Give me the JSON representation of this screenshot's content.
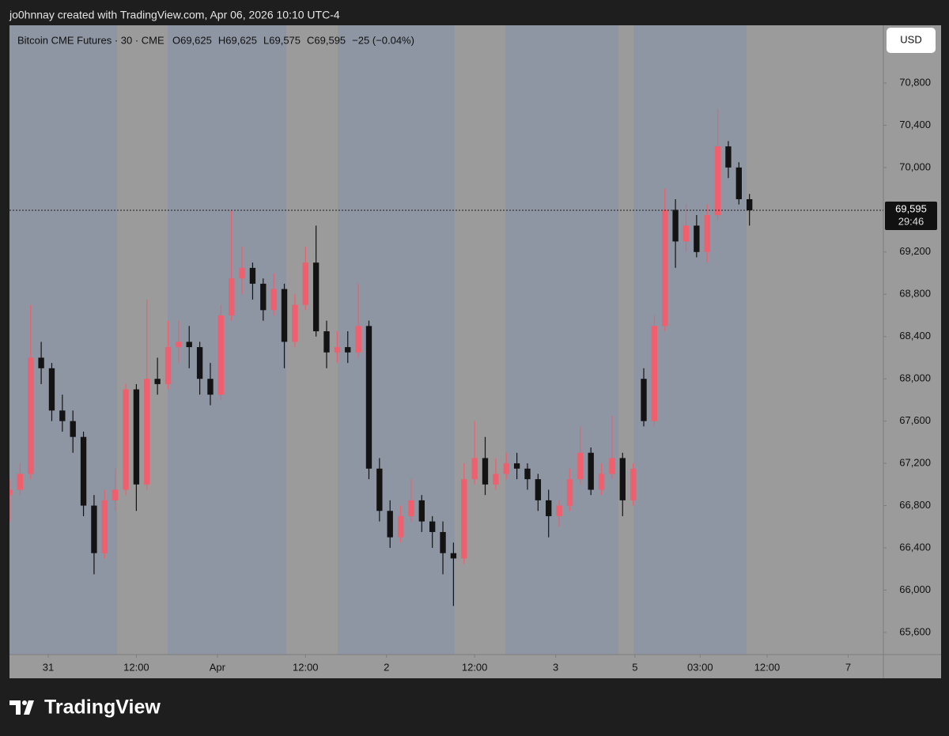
{
  "header": {
    "attribution": "jo0hnnay created with TradingView.com, Apr 06, 2026 10:10 UTC-4"
  },
  "footer": {
    "logo": "TradingView"
  },
  "chart_data": {
    "type": "candlestick",
    "title": "Bitcoin CME Futures · 30 · CME",
    "legend_values": [
      "O69,625",
      "H69,625",
      "L69,575",
      "C69,595"
    ],
    "change": "−25 (−0.04%)",
    "currency": "USD",
    "up_color": "#ef5f6d",
    "down_color": "#131313",
    "x": [
      0,
      3,
      6,
      9,
      12,
      15,
      18,
      21,
      24,
      27,
      30,
      33,
      36,
      39,
      42,
      45,
      48,
      51,
      54,
      57,
      60,
      63,
      66,
      69,
      72,
      75,
      78,
      81,
      84,
      87,
      90,
      93,
      96,
      99,
      102,
      105,
      108,
      111,
      114,
      117,
      120,
      123,
      126,
      129,
      132,
      135,
      138,
      141,
      144,
      147,
      150,
      153,
      156,
      159,
      162,
      165,
      168,
      171,
      174,
      177,
      180,
      183,
      186,
      189,
      192,
      195,
      198,
      201,
      204,
      207,
      210
    ],
    "open": [
      66900,
      66950,
      67100,
      68200,
      68100,
      67700,
      67600,
      67450,
      66800,
      66350,
      66850,
      66950,
      67900,
      67000,
      68000,
      67950,
      68300,
      68350,
      68300,
      68000,
      67850,
      68600,
      68950,
      69050,
      68900,
      68650,
      68850,
      68350,
      68700,
      69100,
      68450,
      68250,
      68300,
      68250,
      68500,
      67150,
      66750,
      66500,
      66700,
      66850,
      66650,
      66550,
      66350,
      66300,
      67050,
      67250,
      67000,
      67100,
      67200,
      67150,
      67050,
      66850,
      66700,
      66800,
      67050,
      67300,
      66950,
      67100,
      67250,
      66850,
      68000,
      67600,
      68500,
      69600,
      69300,
      69450,
      69200,
      69550,
      70200,
      70000,
      69700
    ],
    "high": [
      67050,
      67200,
      68700,
      68350,
      68150,
      67850,
      67700,
      67500,
      66900,
      66950,
      67150,
      67950,
      67950,
      68750,
      68200,
      68550,
      68550,
      68500,
      68350,
      68150,
      68700,
      69600,
      69250,
      69100,
      68950,
      69000,
      68900,
      68800,
      69250,
      69450,
      68550,
      68450,
      68450,
      68900,
      68550,
      67250,
      66850,
      66800,
      67050,
      66900,
      66700,
      66650,
      66450,
      67200,
      67600,
      67450,
      67250,
      67300,
      67300,
      67200,
      67100,
      66950,
      66850,
      67150,
      67550,
      67350,
      67200,
      67650,
      67300,
      67200,
      68100,
      68600,
      69800,
      69700,
      69650,
      69550,
      69650,
      70550,
      70250,
      70050,
      69750
    ],
    "low": [
      66650,
      66900,
      67050,
      67950,
      67600,
      67500,
      67300,
      66700,
      66150,
      66300,
      66750,
      66900,
      66750,
      66950,
      67850,
      67900,
      68150,
      68100,
      67850,
      67750,
      67800,
      68550,
      68800,
      68750,
      68550,
      68600,
      68100,
      68300,
      68650,
      68400,
      68100,
      68150,
      68150,
      68200,
      67050,
      66650,
      66400,
      66450,
      66650,
      66550,
      66400,
      66150,
      65850,
      66250,
      67000,
      66900,
      66950,
      67050,
      67050,
      66950,
      66750,
      66500,
      66600,
      66750,
      67000,
      66900,
      66900,
      67050,
      66700,
      66800,
      67550,
      67550,
      68450,
      69050,
      69200,
      69150,
      69100,
      69500,
      69900,
      69650,
      69450
    ],
    "close": [
      66950,
      67100,
      68200,
      68100,
      67700,
      67600,
      67450,
      66800,
      66350,
      66850,
      66950,
      67900,
      67000,
      68000,
      67950,
      68300,
      68350,
      68300,
      68000,
      67850,
      68600,
      68950,
      69050,
      68900,
      68650,
      68850,
      68350,
      68700,
      69100,
      68450,
      68250,
      68300,
      68250,
      68500,
      67150,
      66750,
      66500,
      66700,
      66850,
      66650,
      66550,
      66350,
      66300,
      67050,
      67250,
      67000,
      67100,
      67200,
      67150,
      67050,
      66850,
      66700,
      66800,
      67050,
      67300,
      66950,
      67100,
      67250,
      66850,
      67150,
      67600,
      68500,
      69600,
      69300,
      69450,
      69200,
      69550,
      70200,
      70000,
      69700,
      69595
    ],
    "xlim": [
      0,
      248
    ],
    "xticks": [
      {
        "value": 11,
        "label": "31"
      },
      {
        "value": 36,
        "label": "12:00"
      },
      {
        "value": 59,
        "label": "Apr"
      },
      {
        "value": 84,
        "label": "12:00"
      },
      {
        "value": 107,
        "label": "2"
      },
      {
        "value": 132,
        "label": "12:00"
      },
      {
        "value": 155,
        "label": "3"
      },
      {
        "value": 177.5,
        "label": "5"
      },
      {
        "value": 196,
        "label": "03:00"
      },
      {
        "value": 215,
        "label": "12:00"
      },
      {
        "value": 238,
        "label": "7"
      }
    ],
    "ylim": [
      65390,
      71346
    ],
    "yticks": [
      {
        "value": 65600,
        "label": "65,600"
      },
      {
        "value": 66000,
        "label": "66,000"
      },
      {
        "value": 66400,
        "label": "66,400"
      },
      {
        "value": 66800,
        "label": "66,800"
      },
      {
        "value": 67200,
        "label": "67,200"
      },
      {
        "value": 67600,
        "label": "67,600"
      },
      {
        "value": 68000,
        "label": "68,000"
      },
      {
        "value": 68400,
        "label": "68,400"
      },
      {
        "value": 68800,
        "label": "68,800"
      },
      {
        "value": 69200,
        "label": "69,200"
      },
      {
        "value": 70000,
        "label": "70,000"
      },
      {
        "value": 70400,
        "label": "70,400"
      },
      {
        "value": 70800,
        "label": "70,800"
      }
    ],
    "last_price": {
      "value": 69595,
      "label": "69,595"
    },
    "countdown": "29:46"
  }
}
